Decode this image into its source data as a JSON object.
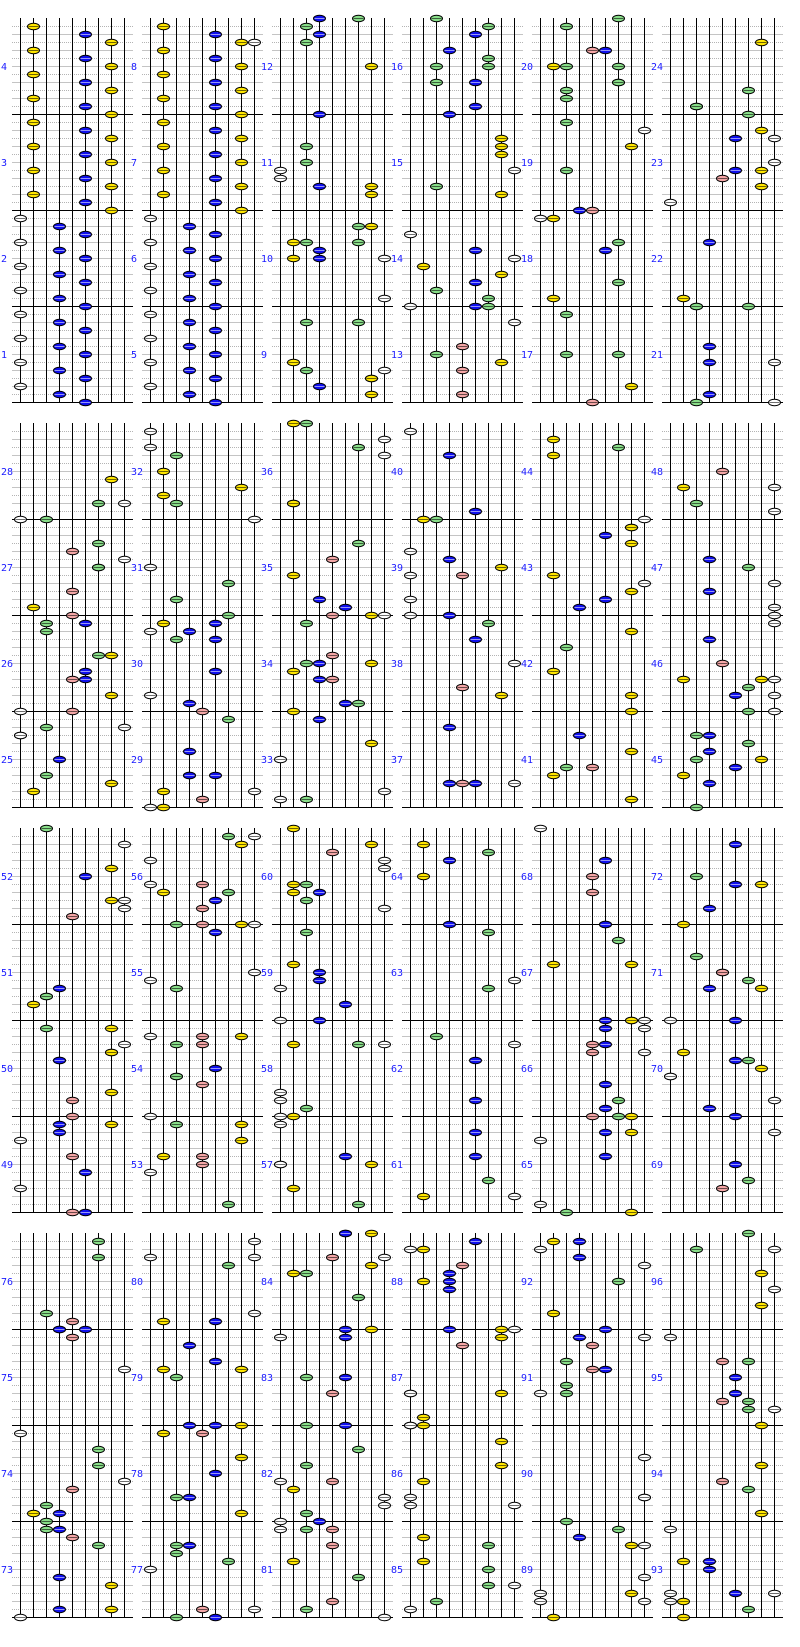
{
  "lanes": [
    {
      "color": "#ffffff"
    },
    {
      "color": "#ffe600"
    },
    {
      "color": "#88dd88"
    },
    {
      "color": "#1010ee"
    },
    {
      "color": "#f4a6a6"
    },
    {
      "color": "#1010ee"
    },
    {
      "color": "#88dd88"
    },
    {
      "color": "#ffe600"
    },
    {
      "color": "#ffffff"
    }
  ],
  "measure_labels": [
    "1",
    "2",
    "3",
    "4",
    "5",
    "6",
    "7",
    "8",
    "9",
    "10",
    "11",
    "12",
    "13",
    "14",
    "15",
    "16",
    "17",
    "18",
    "19",
    "20",
    "21",
    "22",
    "23",
    "24",
    "25",
    "26",
    "27",
    "28",
    "29",
    "30",
    "31",
    "32",
    "33",
    "34",
    "35",
    "36",
    "37",
    "38",
    "39",
    "40",
    "41",
    "42",
    "43",
    "44",
    "45",
    "46",
    "47",
    "48",
    "49",
    "50",
    "51",
    "52",
    "53",
    "54",
    "55",
    "56",
    "57",
    "58",
    "59",
    "60",
    "61",
    "62",
    "63",
    "64",
    "65",
    "66",
    "67",
    "68",
    "69",
    "70",
    "71",
    "72",
    "73",
    "74",
    "75",
    "76",
    "77",
    "78",
    "79",
    "80",
    "81",
    "82",
    "83",
    "84",
    "85",
    "86",
    "87",
    "88",
    "89",
    "90",
    "91",
    "92",
    "93",
    "94",
    "95",
    "96"
  ],
  "known_notes": {
    "1": [
      [
        0,
        1
      ],
      [
        0,
        4
      ],
      [
        0,
        7
      ],
      [
        0,
        10
      ],
      [
        3,
        2
      ],
      [
        3,
        5
      ],
      [
        3,
        8
      ],
      [
        3,
        11
      ],
      [
        5,
        3
      ],
      [
        5,
        6
      ],
      [
        5,
        9
      ],
      [
        5,
        12
      ]
    ],
    "2": [
      [
        0,
        1
      ],
      [
        0,
        4
      ],
      [
        0,
        7
      ],
      [
        0,
        10
      ],
      [
        3,
        2
      ],
      [
        3,
        5
      ],
      [
        3,
        8
      ],
      [
        3,
        11
      ],
      [
        5,
        3
      ],
      [
        5,
        6
      ],
      [
        5,
        9
      ],
      [
        5,
        12
      ]
    ],
    "3": [
      [
        1,
        1
      ],
      [
        1,
        4
      ],
      [
        1,
        7
      ],
      [
        1,
        10
      ],
      [
        5,
        2
      ],
      [
        5,
        5
      ],
      [
        5,
        8
      ],
      [
        5,
        11
      ],
      [
        7,
        3
      ],
      [
        7,
        6
      ],
      [
        7,
        9
      ],
      [
        7,
        12
      ]
    ],
    "4": [
      [
        1,
        1
      ],
      [
        1,
        4
      ],
      [
        1,
        7
      ],
      [
        1,
        10
      ],
      [
        5,
        2
      ],
      [
        5,
        5
      ],
      [
        5,
        8
      ],
      [
        5,
        11
      ],
      [
        7,
        3
      ],
      [
        7,
        6
      ],
      [
        7,
        9
      ],
      [
        7,
        12
      ]
    ],
    "5": [
      [
        0,
        1
      ],
      [
        0,
        4
      ],
      [
        0,
        7
      ],
      [
        0,
        10
      ],
      [
        3,
        2
      ],
      [
        3,
        5
      ],
      [
        3,
        8
      ],
      [
        3,
        11
      ],
      [
        5,
        3
      ],
      [
        5,
        6
      ],
      [
        5,
        9
      ],
      [
        5,
        12
      ]
    ],
    "6": [
      [
        0,
        1
      ],
      [
        0,
        4
      ],
      [
        0,
        7
      ],
      [
        0,
        10
      ],
      [
        3,
        2
      ],
      [
        3,
        5
      ],
      [
        3,
        8
      ],
      [
        3,
        11
      ],
      [
        5,
        3
      ],
      [
        5,
        6
      ],
      [
        5,
        9
      ],
      [
        5,
        12
      ]
    ],
    "7": [
      [
        1,
        1
      ],
      [
        1,
        4
      ],
      [
        1,
        7
      ],
      [
        1,
        10
      ],
      [
        5,
        2
      ],
      [
        5,
        5
      ],
      [
        5,
        8
      ],
      [
        5,
        11
      ],
      [
        7,
        3
      ],
      [
        7,
        6
      ],
      [
        7,
        9
      ],
      [
        7,
        12
      ]
    ],
    "8": [
      [
        1,
        1
      ],
      [
        1,
        4
      ],
      [
        1,
        7
      ],
      [
        1,
        10
      ],
      [
        5,
        2
      ],
      [
        5,
        5
      ],
      [
        5,
        8
      ],
      [
        5,
        11
      ],
      [
        7,
        3
      ],
      [
        7,
        6
      ],
      [
        7,
        9
      ],
      [
        7,
        12
      ],
      [
        8,
        3
      ]
    ]
  }
}
